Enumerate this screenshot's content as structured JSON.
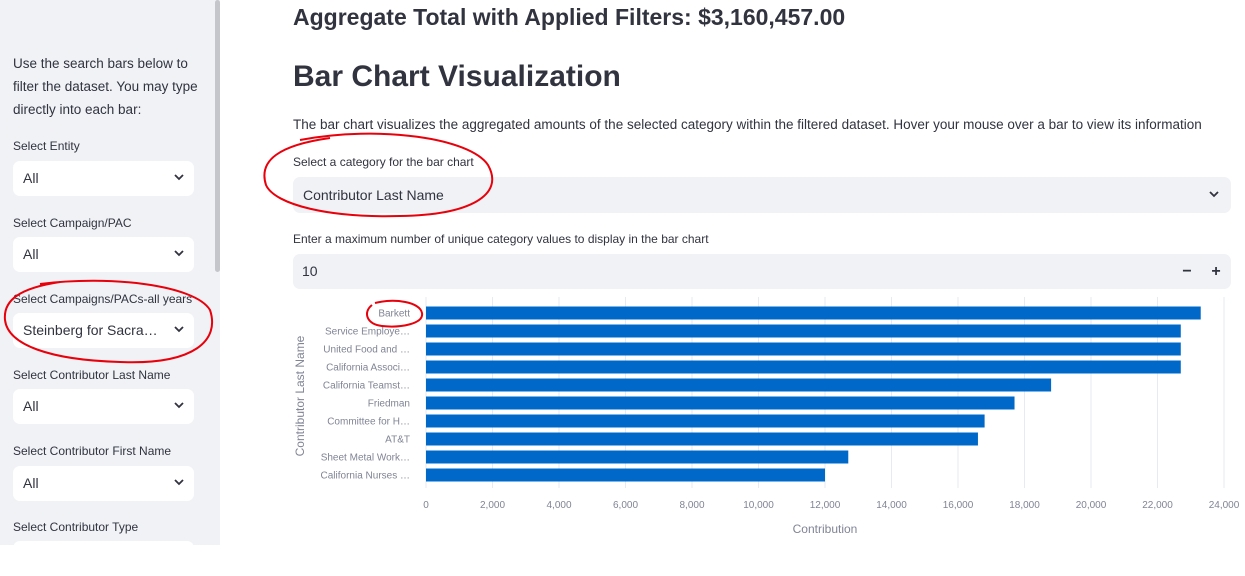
{
  "sidebar": {
    "intro": "Use the search bars below to filter the dataset. You may type directly into each bar:",
    "filters": [
      {
        "label": "Select Entity",
        "value": "All"
      },
      {
        "label": "Select Campaign/PAC",
        "value": "All"
      },
      {
        "label": "Select Campaigns/PACs-all years",
        "value": "Steinberg for Sacra…"
      },
      {
        "label": "Select Contributor Last Name",
        "value": "All"
      },
      {
        "label": "Select Contributor First Name",
        "value": "All"
      },
      {
        "label": "Select Contributor Type",
        "value": ""
      }
    ]
  },
  "main": {
    "aggregate_title": "Aggregate Total with Applied Filters: $3,160,457.00",
    "section_title": "Bar Chart Visualization",
    "description": "The bar chart visualizes the aggregated amounts of the selected category within the filtered dataset. Hover your mouse over a bar to view its information",
    "category_label": "Select a category for the bar chart",
    "category_value": "Contributor Last Name",
    "max_label": "Enter a maximum number of unique category values to display in the bar chart",
    "max_value": "10",
    "minus": "−",
    "plus": "+"
  },
  "colors": {
    "bar": "#0068c9",
    "annotation": "#e8000b"
  },
  "icons": {
    "dropdown": "chevron-down-icon"
  },
  "chart_data": {
    "type": "bar",
    "orientation": "horizontal",
    "categories": [
      "Barkett",
      "Service Employe…",
      "United Food and …",
      "California Associ…",
      "California Teamst…",
      "Friedman",
      "Committee for H…",
      "AT&T",
      "Sheet Metal Work…",
      "California Nurses …"
    ],
    "values": [
      23300,
      22700,
      22700,
      22700,
      18800,
      17700,
      16800,
      16600,
      12700,
      12000
    ],
    "xlabel": "Contribution",
    "ylabel": "Contributor Last Name",
    "xlim": [
      0,
      24000
    ],
    "xticks": [
      0,
      2000,
      4000,
      6000,
      8000,
      10000,
      12000,
      14000,
      16000,
      18000,
      20000,
      22000,
      24000
    ],
    "xtick_labels": [
      "0",
      "2,000",
      "4,000",
      "6,000",
      "8,000",
      "10,000",
      "12,000",
      "14,000",
      "16,000",
      "18,000",
      "20,000",
      "22,000",
      "24,000"
    ],
    "grid": true
  }
}
